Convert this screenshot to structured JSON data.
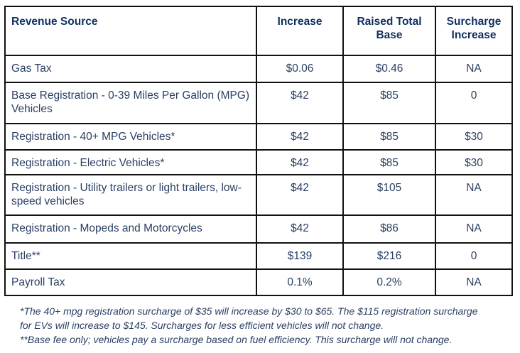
{
  "table": {
    "headers": [
      "Revenue Source",
      "Increase",
      "Raised Total Base",
      "Surcharge Increase"
    ],
    "rows": [
      [
        "Gas Tax",
        "$0.06",
        "$0.46",
        "NA"
      ],
      [
        "Base Registration - 0-39 Miles Per Gallon (MPG) Vehicles",
        "$42",
        "$85",
        "0"
      ],
      [
        "Registration - 40+ MPG Vehicles*",
        "$42",
        "$85",
        "$30"
      ],
      [
        "Registration - Electric Vehicles*",
        "$42",
        "$85",
        "$30"
      ],
      [
        "Registration - Utility trailers or light trailers, low-speed vehicles",
        "$42",
        "$105",
        "NA"
      ],
      [
        "Registration - Mopeds and Motorcycles",
        "$42",
        "$86",
        "NA"
      ],
      [
        "Title**",
        "$139",
        "$216",
        "0"
      ],
      [
        "Payroll Tax",
        "0.1%",
        "0.2%",
        "NA"
      ]
    ]
  },
  "footnotes": [
    "*The 40+ mpg registration surcharge of $35 will increase by $30 to $65. The $115 registration surcharge for EVs will increase to $145. Surcharges for less efficient vehicles will not change.",
    "**Base fee only; vehicles pay a surcharge based on fuel efficiency. This surcharge will not change."
  ]
}
